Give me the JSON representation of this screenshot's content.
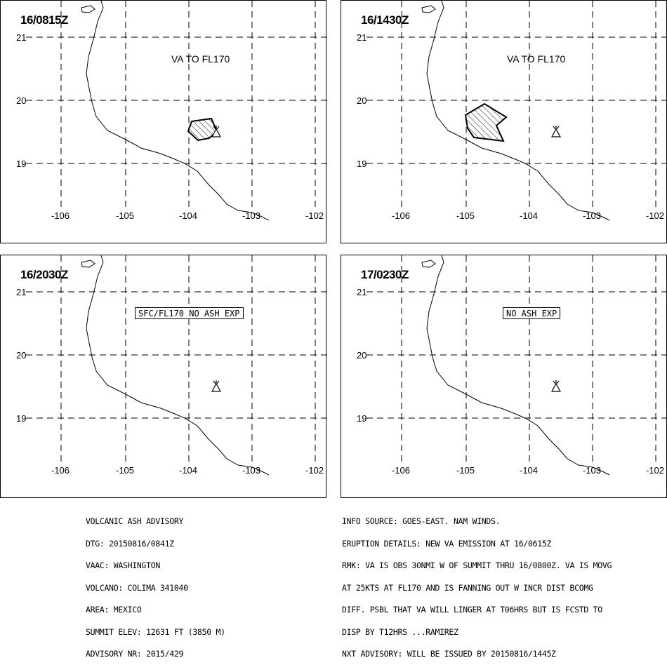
{
  "panels": [
    {
      "time": "16/0815Z",
      "label": "VA TO FL170",
      "boxed": false,
      "plume": "p1"
    },
    {
      "time": "16/1430Z",
      "label": "VA TO FL170",
      "boxed": false,
      "plume": "p2"
    },
    {
      "time": "16/2030Z",
      "label": "SFC/FL170 NO ASH EXP",
      "boxed": true,
      "plume": null
    },
    {
      "time": "17/0230Z",
      "label": "NO ASH EXP",
      "boxed": true,
      "plume": null
    }
  ],
  "latitudes": [
    "21",
    "20",
    "19"
  ],
  "longitudes": [
    "-106",
    "-105",
    "-104",
    "-103",
    "-102"
  ],
  "icons": {
    "volcano": "volcano-icon"
  },
  "advisory_left": [
    "VOLCANIC ASH ADVISORY",
    "DTG: 20150816/0841Z",
    "VAAC: WASHINGTON",
    "VOLCANO: COLIMA 341040",
    "AREA: MEXICO",
    "SUMMIT ELEV: 12631 FT (3850 M)",
    "ADVISORY NR: 2015/429"
  ],
  "advisory_right": [
    "INFO SOURCE: GOES-EAST. NAM WINDS.",
    "ERUPTION DETAILS: NEW VA EMISSION AT 16/0615Z",
    "RMK: VA IS OBS 30NMI W OF SUMMIT THRU 16/0800Z. VA IS MOVG",
    "AT 25KTS AT FL170 AND IS FANNING OUT W INCR DIST BCOMG",
    "DIFF. PSBL THAT VA WILL LINGER AT T06HRS BUT IS FCSTD TO",
    "DISP BY T12HRS ...RAMIREZ",
    "NXT ADVISORY: WILL BE ISSUED BY 20150816/1445Z"
  ]
}
